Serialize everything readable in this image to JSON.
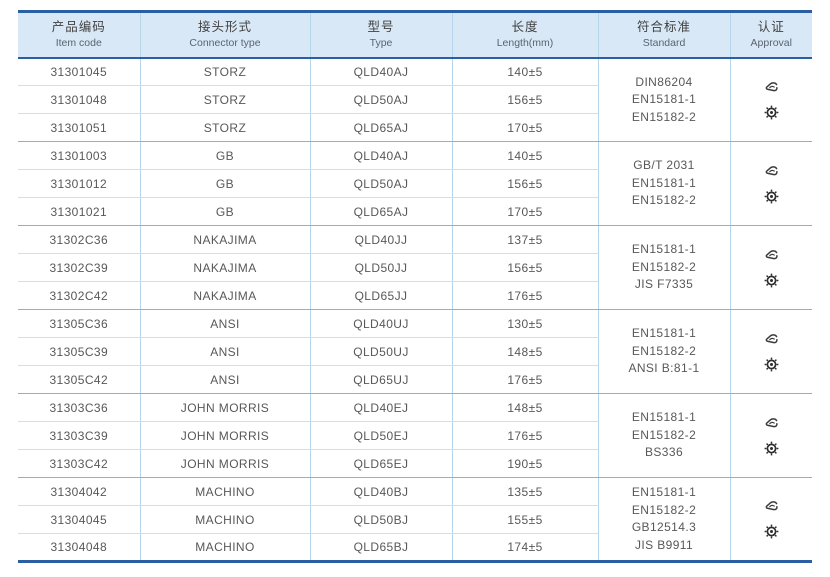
{
  "colors": {
    "header_bg": "#d9e8f6",
    "border_dark": "#2b5fa3",
    "grid_light": "#cfe0ec",
    "grid_group": "#85b4d9",
    "col_sep": "#b5d6ea",
    "text": "#585858"
  },
  "table": {
    "columns": [
      {
        "zh": "产品编码",
        "en": "Item code"
      },
      {
        "zh": "接头形式",
        "en": "Connector type"
      },
      {
        "zh": "型号",
        "en": "Type"
      },
      {
        "zh": "长度",
        "en": "Length(mm)"
      },
      {
        "zh": "符合标准",
        "en": "Standard"
      },
      {
        "zh": "认证",
        "en": "Approval"
      }
    ],
    "groups": [
      {
        "rows": [
          [
            "31301045",
            "STORZ",
            "QLD40AJ",
            "140±5"
          ],
          [
            "31301048",
            "STORZ",
            "QLD50AJ",
            "156±5"
          ],
          [
            "31301051",
            "STORZ",
            "QLD65AJ",
            "170±5"
          ]
        ],
        "standards": [
          "DIN86204",
          "EN15181-1",
          "EN15182-2"
        ],
        "approval_icons": [
          "certificate-stamp-icon",
          "gear-seal-icon"
        ]
      },
      {
        "rows": [
          [
            "31301003",
            "GB",
            "QLD40AJ",
            "140±5"
          ],
          [
            "31301012",
            "GB",
            "QLD50AJ",
            "156±5"
          ],
          [
            "31301021",
            "GB",
            "QLD65AJ",
            "170±5"
          ]
        ],
        "standards": [
          "GB/T 2031",
          "EN15181-1",
          "EN15182-2"
        ],
        "approval_icons": [
          "certificate-stamp-icon",
          "gear-seal-icon"
        ]
      },
      {
        "rows": [
          [
            "31302C36",
            "NAKAJIMA",
            "QLD40JJ",
            "137±5"
          ],
          [
            "31302C39",
            "NAKAJIMA",
            "QLD50JJ",
            "156±5"
          ],
          [
            "31302C42",
            "NAKAJIMA",
            "QLD65JJ",
            "176±5"
          ]
        ],
        "standards": [
          "EN15181-1",
          "EN15182-2",
          "JIS F7335"
        ],
        "approval_icons": [
          "certificate-stamp-icon",
          "gear-seal-icon"
        ]
      },
      {
        "rows": [
          [
            "31305C36",
            "ANSI",
            "QLD40UJ",
            "130±5"
          ],
          [
            "31305C39",
            "ANSI",
            "QLD50UJ",
            "148±5"
          ],
          [
            "31305C42",
            "ANSI",
            "QLD65UJ",
            "176±5"
          ]
        ],
        "standards": [
          "EN15181-1",
          "EN15182-2",
          "ANSI B:81-1"
        ],
        "approval_icons": [
          "certificate-stamp-icon",
          "gear-seal-icon"
        ]
      },
      {
        "rows": [
          [
            "31303C36",
            "JOHN MORRIS",
            "QLD40EJ",
            "148±5"
          ],
          [
            "31303C39",
            "JOHN MORRIS",
            "QLD50EJ",
            "176±5"
          ],
          [
            "31303C42",
            "JOHN MORRIS",
            "QLD65EJ",
            "190±5"
          ]
        ],
        "standards": [
          "EN15181-1",
          "EN15182-2",
          "BS336"
        ],
        "approval_icons": [
          "certificate-stamp-icon",
          "gear-seal-icon"
        ]
      },
      {
        "rows": [
          [
            "31304042",
            "MACHINO",
            "QLD40BJ",
            "135±5"
          ],
          [
            "31304045",
            "MACHINO",
            "QLD50BJ",
            "155±5"
          ],
          [
            "31304048",
            "MACHINO",
            "QLD65BJ",
            "174±5"
          ]
        ],
        "standards": [
          "EN15181-1",
          "EN15182-2",
          "GB12514.3",
          "JIS B9911"
        ],
        "approval_icons": [
          "certificate-stamp-icon",
          "gear-seal-icon"
        ]
      }
    ]
  }
}
